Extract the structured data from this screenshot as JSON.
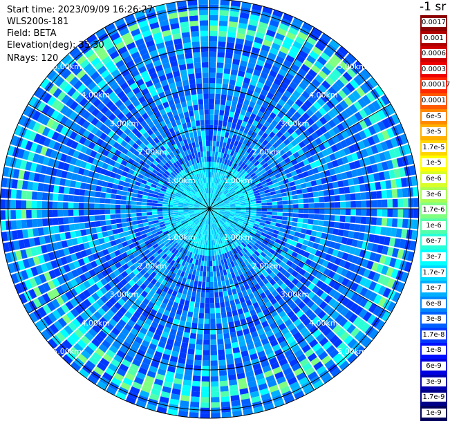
{
  "header": {
    "start_time": "Start time: 2023/09/09 16:26:27",
    "instrument": "WLS200s-181",
    "field": "Field: BETA",
    "elevation": "Elevation(deg): 35.30",
    "nrays": "NRays: 120"
  },
  "colorbar": {
    "unit": "-1 sr",
    "entries": [
      {
        "label": "0.0017",
        "color": "#8b0000"
      },
      {
        "label": "0.001",
        "color": "#b00000"
      },
      {
        "label": "0.0006",
        "color": "#d10000"
      },
      {
        "label": "0.0003",
        "color": "#ee0000"
      },
      {
        "label": "0.00017",
        "color": "#ff2a00"
      },
      {
        "label": "0.0001",
        "color": "#ff5a00"
      },
      {
        "label": "6e-5",
        "color": "#ff8a00"
      },
      {
        "label": "3e-5",
        "color": "#ffb000"
      },
      {
        "label": "1.7e-5",
        "color": "#ffd500"
      },
      {
        "label": "1e-5",
        "color": "#ffff00"
      },
      {
        "label": "6e-6",
        "color": "#d8ff28"
      },
      {
        "label": "3e-6",
        "color": "#aaff55"
      },
      {
        "label": "1.7e-6",
        "color": "#80ff80"
      },
      {
        "label": "1e-6",
        "color": "#55ffaa"
      },
      {
        "label": "6e-7",
        "color": "#28ffd8"
      },
      {
        "label": "3e-7",
        "color": "#00ffff"
      },
      {
        "label": "1.7e-7",
        "color": "#00d8ff"
      },
      {
        "label": "1e-7",
        "color": "#00b0ff"
      },
      {
        "label": "6e-8",
        "color": "#0088ff"
      },
      {
        "label": "3e-8",
        "color": "#0060ff"
      },
      {
        "label": "1.7e-8",
        "color": "#0038ff"
      },
      {
        "label": "1e-8",
        "color": "#0010ff"
      },
      {
        "label": "6e-9",
        "color": "#0000e0"
      },
      {
        "label": "3e-9",
        "color": "#0000b0"
      },
      {
        "label": "1.7e-9",
        "color": "#000088"
      },
      {
        "label": "1e-9",
        "color": "#00005a"
      }
    ]
  },
  "chart_data": {
    "type": "heatmap",
    "projection": "polar PPI",
    "rings_km": [
      1.0,
      2.0,
      3.0,
      4.0,
      5.0
    ],
    "ring_labels": [
      "1.00km",
      "2.00km",
      "3.00km",
      "4.00km",
      "5.00km"
    ],
    "max_range_km": 5.2,
    "spokes": 12,
    "nrays": 120,
    "dominant_band": "1.7e-8 to 3e-7",
    "bright_annulus_km": [
      4.3,
      5.0
    ],
    "bright_annulus_values": "1.7e-7 to 1e-6",
    "grid": true
  }
}
